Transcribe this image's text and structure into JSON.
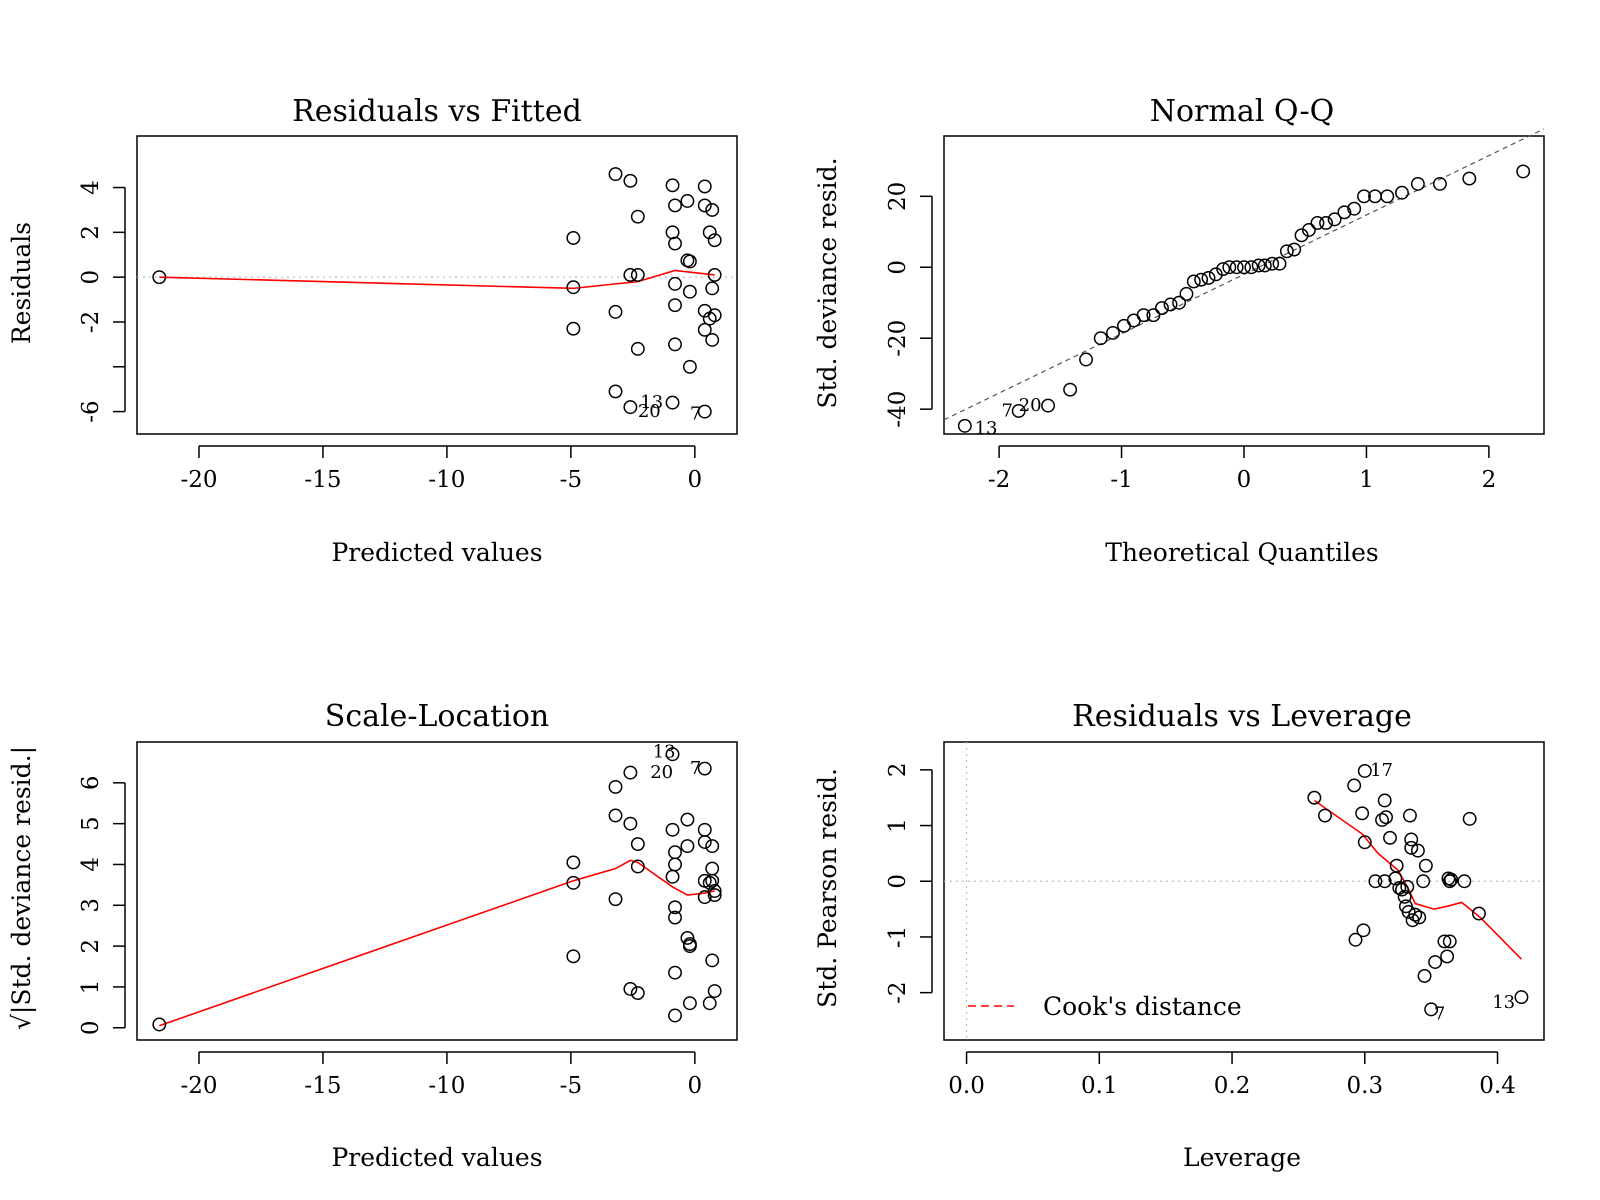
{
  "colors": {
    "smooth": "#ff0000",
    "reference": "#bebebe",
    "qqline": "#555555",
    "points": "#000000"
  },
  "chart_data": [
    {
      "id": "residuals-vs-fitted",
      "type": "scatter",
      "title": "Residuals vs Fitted",
      "xlabel": "Predicted values",
      "ylabel": "Residuals",
      "xlim": [
        -22.5,
        1.7
      ],
      "ylim": [
        -7.0,
        6.3
      ],
      "xticks": [
        -20,
        -15,
        -10,
        -5,
        0
      ],
      "yticks": [
        -6,
        -4,
        -2,
        0,
        2,
        4
      ],
      "ytick_labels": [
        "-6",
        "",
        "-2",
        "0",
        "2",
        "4"
      ],
      "grid": false,
      "reference_line": {
        "type": "h",
        "value": 0,
        "style": "dotted"
      },
      "points": [
        {
          "x": -21.6,
          "y": 0.0
        },
        {
          "x": -4.9,
          "y": 1.75
        },
        {
          "x": -4.9,
          "y": -0.45
        },
        {
          "x": -4.9,
          "y": -2.3
        },
        {
          "x": -3.2,
          "y": 4.6
        },
        {
          "x": -3.2,
          "y": -1.55
        },
        {
          "x": -3.2,
          "y": -5.1
        },
        {
          "x": -2.6,
          "y": 4.3
        },
        {
          "x": -2.6,
          "y": 0.1
        },
        {
          "x": -2.6,
          "y": -5.8
        },
        {
          "x": -2.3,
          "y": 2.7
        },
        {
          "x": -2.3,
          "y": 0.1
        },
        {
          "x": -2.3,
          "y": -3.2
        },
        {
          "x": -0.9,
          "y": 4.1
        },
        {
          "x": -0.9,
          "y": 2.0
        },
        {
          "x": -0.9,
          "y": -5.6
        },
        {
          "x": -0.8,
          "y": 3.2
        },
        {
          "x": -0.8,
          "y": 1.5
        },
        {
          "x": -0.8,
          "y": -0.3
        },
        {
          "x": -0.8,
          "y": -1.25
        },
        {
          "x": -0.8,
          "y": -3.0
        },
        {
          "x": -0.3,
          "y": 3.4
        },
        {
          "x": -0.3,
          "y": 0.75
        },
        {
          "x": -0.2,
          "y": 0.7
        },
        {
          "x": -0.2,
          "y": -0.65
        },
        {
          "x": -0.2,
          "y": -4.0
        },
        {
          "x": 0.4,
          "y": 4.05
        },
        {
          "x": 0.4,
          "y": 3.2
        },
        {
          "x": 0.4,
          "y": -1.5
        },
        {
          "x": 0.4,
          "y": -2.35
        },
        {
          "x": 0.4,
          "y": -6.0
        },
        {
          "x": 0.6,
          "y": 2.0
        },
        {
          "x": 0.6,
          "y": -1.85
        },
        {
          "x": 0.7,
          "y": 3.0
        },
        {
          "x": 0.7,
          "y": -0.5
        },
        {
          "x": 0.7,
          "y": -2.8
        },
        {
          "x": 0.8,
          "y": 1.65
        },
        {
          "x": 0.8,
          "y": 0.1
        },
        {
          "x": 0.8,
          "y": -1.7
        }
      ],
      "point_labels": [
        {
          "text": "13",
          "x": -2.2,
          "y": -5.6
        },
        {
          "text": "20",
          "x": -2.3,
          "y": -6.0
        },
        {
          "text": "7",
          "x": -0.2,
          "y": -6.1
        }
      ],
      "smooth": [
        [
          -21.6,
          0.0
        ],
        [
          -4.9,
          -0.5
        ],
        [
          -3.2,
          -0.3
        ],
        [
          -2.3,
          -0.2
        ],
        [
          -0.8,
          0.3
        ],
        [
          0.4,
          0.15
        ],
        [
          0.8,
          0.1
        ]
      ]
    },
    {
      "id": "normal-qq",
      "type": "scatter",
      "title": "Normal Q-Q",
      "xlabel": "Theoretical Quantiles",
      "ylabel": "Std. deviance resid.",
      "xlim": [
        -2.45,
        2.45
      ],
      "ylim": [
        -47,
        37
      ],
      "xticks": [
        -2,
        -1,
        0,
        1,
        2
      ],
      "yticks": [
        -40,
        -20,
        0,
        20
      ],
      "ytick_labels": [
        "-40",
        "-20",
        "0",
        "20"
      ],
      "grid": false,
      "reference_line": {
        "type": "ab",
        "points": [
          [
            -2.45,
            -43
          ],
          [
            2.45,
            39
          ]
        ],
        "style": "dashed"
      },
      "points": [
        {
          "x": -2.28,
          "y": -44.7
        },
        {
          "x": -1.84,
          "y": -40.5
        },
        {
          "x": -1.6,
          "y": -39.0
        },
        {
          "x": -1.42,
          "y": -34.5
        },
        {
          "x": -1.29,
          "y": -26.0
        },
        {
          "x": -1.17,
          "y": -20.0
        },
        {
          "x": -1.07,
          "y": -18.5
        },
        {
          "x": -0.98,
          "y": -16.5
        },
        {
          "x": -0.9,
          "y": -15.0
        },
        {
          "x": -0.82,
          "y": -13.5
        },
        {
          "x": -0.74,
          "y": -13.5
        },
        {
          "x": -0.67,
          "y": -11.5
        },
        {
          "x": -0.6,
          "y": -10.5
        },
        {
          "x": -0.53,
          "y": -10.0
        },
        {
          "x": -0.47,
          "y": -7.5
        },
        {
          "x": -0.41,
          "y": -4.0
        },
        {
          "x": -0.35,
          "y": -3.5
        },
        {
          "x": -0.29,
          "y": -3.0
        },
        {
          "x": -0.23,
          "y": -2.0
        },
        {
          "x": -0.17,
          "y": -0.5
        },
        {
          "x": -0.12,
          "y": 0.0
        },
        {
          "x": -0.06,
          "y": 0.0
        },
        {
          "x": 0.0,
          "y": 0.0
        },
        {
          "x": 0.06,
          "y": 0.0
        },
        {
          "x": 0.12,
          "y": 0.5
        },
        {
          "x": 0.17,
          "y": 0.5
        },
        {
          "x": 0.23,
          "y": 1.0
        },
        {
          "x": 0.29,
          "y": 1.0
        },
        {
          "x": 0.35,
          "y": 4.5
        },
        {
          "x": 0.41,
          "y": 5.0
        },
        {
          "x": 0.47,
          "y": 9.0
        },
        {
          "x": 0.53,
          "y": 10.5
        },
        {
          "x": 0.6,
          "y": 12.5
        },
        {
          "x": 0.67,
          "y": 12.5
        },
        {
          "x": 0.74,
          "y": 13.5
        },
        {
          "x": 0.82,
          "y": 15.5
        },
        {
          "x": 0.9,
          "y": 16.5
        },
        {
          "x": 0.98,
          "y": 20.0
        },
        {
          "x": 1.07,
          "y": 20.0
        },
        {
          "x": 1.17,
          "y": 20.0
        },
        {
          "x": 1.29,
          "y": 21.0
        },
        {
          "x": 1.42,
          "y": 23.5
        },
        {
          "x": 1.6,
          "y": 23.5
        },
        {
          "x": 1.84,
          "y": 25.0
        },
        {
          "x": 2.28,
          "y": 27.0
        }
      ],
      "point_labels": [
        {
          "text": "13",
          "x": -2.2,
          "y": -45.5
        },
        {
          "text": "7",
          "x": -1.98,
          "y": -40.5
        },
        {
          "text": "20",
          "x": -1.84,
          "y": -39.0
        }
      ],
      "smooth": []
    },
    {
      "id": "scale-location",
      "type": "scatter",
      "title": "Scale-Location",
      "xlabel": "Predicted values",
      "ylabel": "√|Std. deviance resid.|",
      "xlim": [
        -22.5,
        1.7
      ],
      "ylim": [
        -0.3,
        7.0
      ],
      "xticks": [
        -20,
        -15,
        -10,
        -5,
        0
      ],
      "yticks": [
        0,
        1,
        2,
        3,
        4,
        5,
        6
      ],
      "ytick_labels": [
        "0",
        "1",
        "2",
        "3",
        "4",
        "5",
        "6"
      ],
      "grid": false,
      "points": [
        {
          "x": -21.6,
          "y": 0.08
        },
        {
          "x": -4.9,
          "y": 4.05
        },
        {
          "x": -4.9,
          "y": 3.55
        },
        {
          "x": -4.9,
          "y": 1.75
        },
        {
          "x": -3.2,
          "y": 5.9
        },
        {
          "x": -3.2,
          "y": 5.2
        },
        {
          "x": -3.2,
          "y": 3.15
        },
        {
          "x": -2.6,
          "y": 6.25
        },
        {
          "x": -2.6,
          "y": 5.0
        },
        {
          "x": -2.6,
          "y": 0.95
        },
        {
          "x": -2.3,
          "y": 4.5
        },
        {
          "x": -2.3,
          "y": 3.95
        },
        {
          "x": -2.3,
          "y": 0.85
        },
        {
          "x": -0.9,
          "y": 6.7
        },
        {
          "x": -0.9,
          "y": 4.85
        },
        {
          "x": -0.9,
          "y": 3.7
        },
        {
          "x": -0.8,
          "y": 4.3
        },
        {
          "x": -0.8,
          "y": 4.0
        },
        {
          "x": -0.8,
          "y": 2.95
        },
        {
          "x": -0.8,
          "y": 2.7
        },
        {
          "x": -0.8,
          "y": 1.35
        },
        {
          "x": -0.8,
          "y": 0.3
        },
        {
          "x": -0.3,
          "y": 5.1
        },
        {
          "x": -0.3,
          "y": 4.45
        },
        {
          "x": -0.3,
          "y": 2.2
        },
        {
          "x": -0.2,
          "y": 2.05
        },
        {
          "x": -0.2,
          "y": 2.0
        },
        {
          "x": -0.2,
          "y": 0.6
        },
        {
          "x": 0.4,
          "y": 6.35
        },
        {
          "x": 0.4,
          "y": 4.85
        },
        {
          "x": 0.4,
          "y": 4.55
        },
        {
          "x": 0.4,
          "y": 3.6
        },
        {
          "x": 0.4,
          "y": 3.2
        },
        {
          "x": 0.6,
          "y": 3.55
        },
        {
          "x": 0.6,
          "y": 0.6
        },
        {
          "x": 0.7,
          "y": 4.45
        },
        {
          "x": 0.7,
          "y": 3.9
        },
        {
          "x": 0.7,
          "y": 3.6
        },
        {
          "x": 0.7,
          "y": 1.65
        },
        {
          "x": 0.8,
          "y": 3.35
        },
        {
          "x": 0.8,
          "y": 3.25
        },
        {
          "x": 0.8,
          "y": 0.9
        }
      ],
      "point_labels": [
        {
          "text": "13",
          "x": -1.7,
          "y": 6.75
        },
        {
          "text": "20",
          "x": -1.8,
          "y": 6.25
        },
        {
          "text": "7",
          "x": -0.2,
          "y": 6.35
        }
      ],
      "smooth": [
        [
          -21.6,
          0.05
        ],
        [
          -4.9,
          3.6
        ],
        [
          -3.2,
          3.9
        ],
        [
          -2.6,
          4.1
        ],
        [
          -2.3,
          4.05
        ],
        [
          -0.9,
          3.45
        ],
        [
          -0.3,
          3.25
        ],
        [
          0.4,
          3.3
        ],
        [
          0.8,
          3.35
        ]
      ]
    },
    {
      "id": "residuals-vs-leverage",
      "type": "scatter",
      "title": "Residuals vs Leverage",
      "xlabel": "Leverage",
      "ylabel": "Std. Pearson resid.",
      "xlim": [
        -0.017,
        0.435
      ],
      "ylim": [
        -2.85,
        2.5
      ],
      "xticks": [
        0.0,
        0.1,
        0.2,
        0.3,
        0.4
      ],
      "xtick_labels": [
        "0.0",
        "0.1",
        "0.2",
        "0.3",
        "0.4"
      ],
      "yticks": [
        -2,
        -1,
        0,
        1,
        2
      ],
      "ytick_labels": [
        "-2",
        "-1",
        "0",
        "1",
        "2"
      ],
      "grid": false,
      "reference_lines": [
        {
          "type": "h",
          "value": 0,
          "style": "dotted"
        },
        {
          "type": "v",
          "value": 0,
          "style": "dotted"
        }
      ],
      "legend": {
        "label": "Cook's distance",
        "position": "bottom-left",
        "style": "dashed",
        "color": "#ff0000"
      },
      "points": [
        {
          "x": 0.262,
          "y": 1.5
        },
        {
          "x": 0.27,
          "y": 1.18
        },
        {
          "x": 0.292,
          "y": 1.72
        },
        {
          "x": 0.293,
          "y": -1.05
        },
        {
          "x": 0.298,
          "y": 1.22
        },
        {
          "x": 0.299,
          "y": -0.88
        },
        {
          "x": 0.3,
          "y": 0.7
        },
        {
          "x": 0.3,
          "y": 1.98
        },
        {
          "x": 0.308,
          "y": 0.0
        },
        {
          "x": 0.313,
          "y": 1.1
        },
        {
          "x": 0.315,
          "y": 1.45
        },
        {
          "x": 0.315,
          "y": 0.0
        },
        {
          "x": 0.316,
          "y": 1.15
        },
        {
          "x": 0.319,
          "y": 0.78
        },
        {
          "x": 0.323,
          "y": 0.05
        },
        {
          "x": 0.324,
          "y": 0.28
        },
        {
          "x": 0.326,
          "y": -0.12
        },
        {
          "x": 0.328,
          "y": -0.15
        },
        {
          "x": 0.33,
          "y": -0.28
        },
        {
          "x": 0.331,
          "y": -0.45
        },
        {
          "x": 0.332,
          "y": -0.1
        },
        {
          "x": 0.333,
          "y": -0.55
        },
        {
          "x": 0.334,
          "y": 1.18
        },
        {
          "x": 0.335,
          "y": 0.6
        },
        {
          "x": 0.335,
          "y": 0.75
        },
        {
          "x": 0.336,
          "y": -0.7
        },
        {
          "x": 0.338,
          "y": -0.6
        },
        {
          "x": 0.34,
          "y": 0.55
        },
        {
          "x": 0.341,
          "y": -0.65
        },
        {
          "x": 0.344,
          "y": 0.0
        },
        {
          "x": 0.345,
          "y": -1.7
        },
        {
          "x": 0.346,
          "y": 0.28
        },
        {
          "x": 0.35,
          "y": -2.3
        },
        {
          "x": 0.353,
          "y": -1.45
        },
        {
          "x": 0.36,
          "y": -1.08
        },
        {
          "x": 0.362,
          "y": -1.35
        },
        {
          "x": 0.363,
          "y": 0.05
        },
        {
          "x": 0.364,
          "y": 0.0
        },
        {
          "x": 0.365,
          "y": 0.03
        },
        {
          "x": 0.364,
          "y": -1.08
        },
        {
          "x": 0.375,
          "y": 0.0
        },
        {
          "x": 0.379,
          "y": 1.12
        },
        {
          "x": 0.386,
          "y": -0.58
        },
        {
          "x": 0.418,
          "y": -2.08
        }
      ],
      "point_labels": [
        {
          "text": "17",
          "x": 0.304,
          "y": 1.99
        },
        {
          "text": "7",
          "x": 0.352,
          "y": -2.38
        },
        {
          "text": "13",
          "x": 0.396,
          "y": -2.18
        }
      ],
      "smooth": [
        [
          0.262,
          1.45
        ],
        [
          0.298,
          0.85
        ],
        [
          0.31,
          0.5
        ],
        [
          0.325,
          0.2
        ],
        [
          0.332,
          -0.1
        ],
        [
          0.338,
          -0.4
        ],
        [
          0.352,
          -0.5
        ],
        [
          0.362,
          -0.45
        ],
        [
          0.373,
          -0.38
        ],
        [
          0.387,
          -0.65
        ],
        [
          0.418,
          -1.4
        ]
      ]
    }
  ]
}
